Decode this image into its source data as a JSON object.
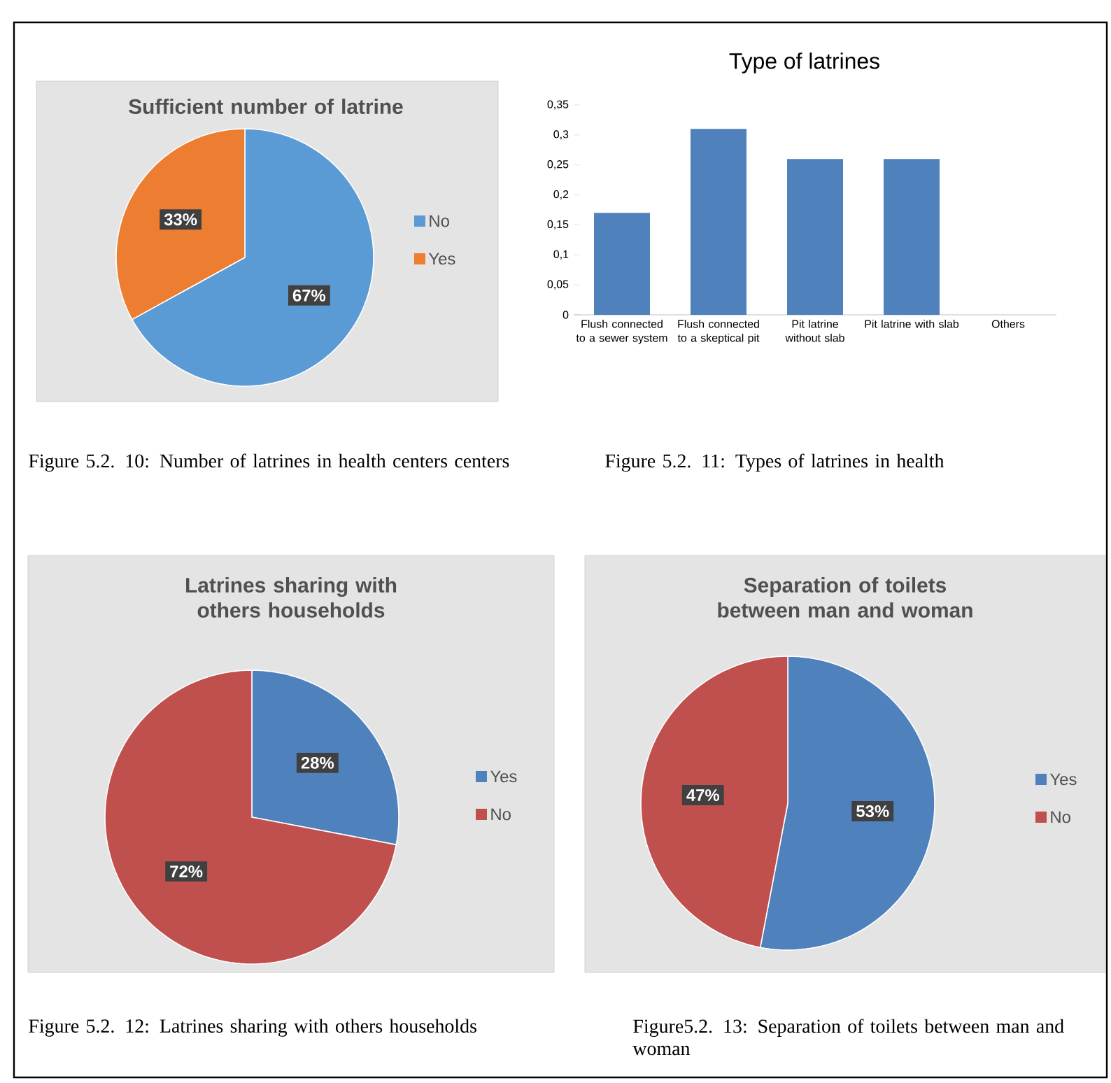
{
  "chart_data": [
    {
      "type": "pie",
      "title": "Sufficient number of latrine",
      "categories": [
        "No",
        "Yes"
      ],
      "values": [
        67,
        33
      ],
      "colors": [
        "#5b9bd5",
        "#ed7d31"
      ],
      "value_labels": [
        "67%",
        "33%"
      ],
      "legend": "right",
      "annotations": [
        "Figure 5.2. 10: Number of latrines in health centers centers"
      ]
    },
    {
      "type": "bar",
      "title": "Type of latrines",
      "categories": [
        "Flush connected to a sewer system",
        "Flush connected to a skeptical pit",
        "Pit latrine without slab",
        "Pit latrine with slab",
        "Others"
      ],
      "values": [
        0.17,
        0.31,
        0.26,
        0.26,
        0
      ],
      "color": "#4f81bd",
      "ylim": [
        0,
        0.35
      ],
      "yticks": [
        0,
        {
          "value": 0.05,
          "label": "0,05"
        },
        {
          "value": 0.1,
          "label": "0,1"
        },
        {
          "value": 0.15,
          "label": "0,15"
        },
        {
          "value": 0.2,
          "label": "0,2"
        },
        {
          "value": 0.25,
          "label": "0,25"
        },
        {
          "value": 0.3,
          "label": "0,3"
        },
        {
          "value": 0.35,
          "label": "0,35"
        }
      ],
      "annotations": [
        "Figure 5.2. 11: Types of latrines in health"
      ]
    },
    {
      "type": "pie",
      "title": "Latrines sharing with others households",
      "categories": [
        "Yes",
        "No"
      ],
      "values": [
        28,
        72
      ],
      "colors": [
        "#4f81bd",
        "#c0504d"
      ],
      "value_labels": [
        "28%",
        "72%"
      ],
      "legend": "right",
      "annotations": [
        "Figure 5.2. 12: Latrines sharing with others households"
      ]
    },
    {
      "type": "pie",
      "title": "Separation of toilets between man and woman",
      "categories": [
        "Yes",
        "No"
      ],
      "values": [
        53,
        47
      ],
      "colors": [
        "#4f81bd",
        "#c0504d"
      ],
      "value_labels": [
        "53%",
        "47%"
      ],
      "legend": "right",
      "annotations": [
        "Figure5.2.  13: Separation of toilets between man and woman"
      ]
    }
  ]
}
